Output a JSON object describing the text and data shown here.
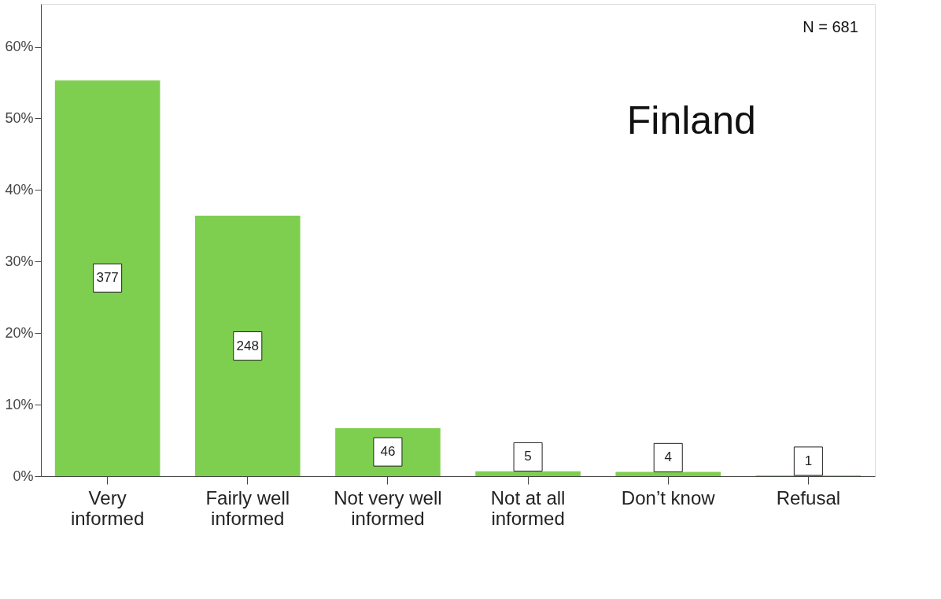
{
  "chart_data": {
    "type": "bar",
    "categories": [
      "Very informed",
      "Fairly well informed",
      "Not very well informed",
      "Not at all informed",
      "Don’t know",
      "Refusal"
    ],
    "values": [
      55.3,
      36.4,
      6.7,
      0.7,
      0.6,
      0.1
    ],
    "color": "#7ecf4f",
    "ylim": [
      0,
      66
    ],
    "yticks": [
      {
        "value": 0,
        "label": "0%"
      },
      {
        "value": 10,
        "label": "10%"
      },
      {
        "value": 20,
        "label": "20%"
      },
      {
        "value": 30,
        "label": "30%"
      },
      {
        "value": 40,
        "label": "40%"
      },
      {
        "value": 50,
        "label": "50%"
      },
      {
        "value": 60,
        "label": "60%"
      }
    ],
    "annotations": [
      "N = 681",
      "Finland",
      {
        "text": "377",
        "x": "Very informed",
        "y": 27.7
      },
      {
        "text": "248",
        "x": "Fairly well informed",
        "y": 18.2
      },
      {
        "text": "46",
        "x": "Not very well informed",
        "y": 3.4
      },
      {
        "text": "5",
        "x": "Not at all informed",
        "y": 2.7
      },
      {
        "text": "4",
        "x": "Don’t know",
        "y": 2.6
      },
      {
        "text": "1",
        "x": "Refusal",
        "y": 2.1
      }
    ],
    "grid": false
  }
}
